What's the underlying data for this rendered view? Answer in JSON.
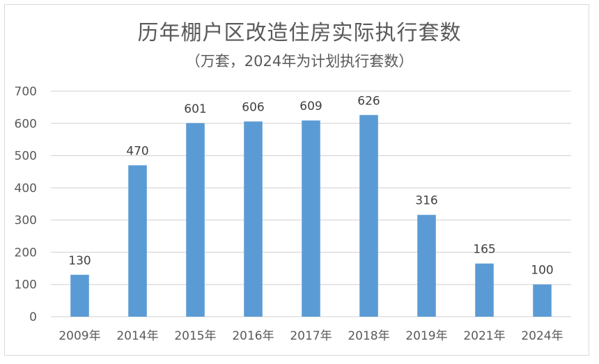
{
  "chart_data": {
    "type": "bar",
    "title": "历年棚户区改造住房实际执行套数",
    "subtitle": "（万套，2024年为计划执行套数）",
    "categories": [
      "2009年",
      "2014年",
      "2015年",
      "2016年",
      "2017年",
      "2018年",
      "2019年",
      "2021年",
      "2024年"
    ],
    "values": [
      130,
      470,
      601,
      606,
      609,
      626,
      316,
      165,
      100
    ],
    "data_labels": [
      "130",
      "470",
      "601",
      "606",
      "609",
      "626",
      "316",
      "165",
      "100"
    ],
    "yticks": [
      "0",
      "100",
      "200",
      "300",
      "400",
      "500",
      "600",
      "700"
    ],
    "ylim": [
      0,
      700
    ],
    "grid": true,
    "legend": "none",
    "bar_color": "#5b9bd5"
  }
}
